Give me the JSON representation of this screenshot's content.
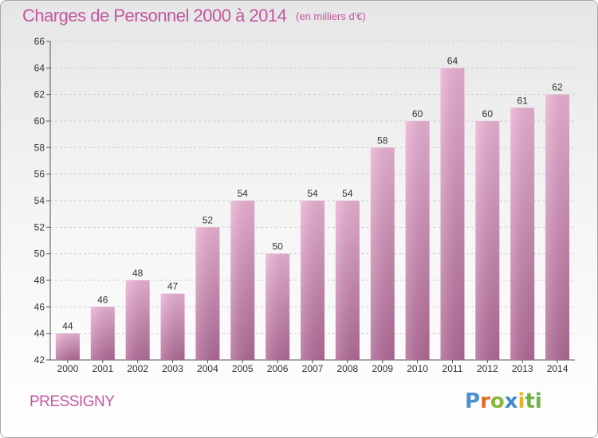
{
  "title": "Charges de Personnel 2000 à 2014",
  "subtitle": "(en milliers d'€)",
  "commune": "PRESSIGNY",
  "logo": {
    "letters": [
      "P",
      "r",
      "o",
      "x",
      "i",
      "ti"
    ]
  },
  "colors": {
    "title": "#c2579f",
    "bar_top": "#eab2d4",
    "bar_bottom": "#b06a96",
    "grid": "#cccccc"
  },
  "chart_data": {
    "type": "bar",
    "categories": [
      "2000",
      "2001",
      "2002",
      "2003",
      "2004",
      "2005",
      "2006",
      "2007",
      "2008",
      "2009",
      "2010",
      "2011",
      "2012",
      "2013",
      "2014"
    ],
    "values": [
      44,
      46,
      48,
      47,
      52,
      54,
      50,
      54,
      54,
      58,
      60,
      64,
      60,
      61,
      62
    ],
    "data_labels": [
      "44",
      "46",
      "48",
      "47",
      "52",
      "54",
      "50",
      "54",
      "54",
      "58",
      "60",
      "64",
      "60",
      "61",
      "62"
    ],
    "ylim": [
      42,
      66
    ],
    "yticks": [
      42,
      44,
      46,
      48,
      50,
      52,
      54,
      56,
      58,
      60,
      62,
      64,
      66
    ],
    "ytick_labels": [
      "42",
      "44",
      "46",
      "48",
      "50",
      "52",
      "54",
      "56",
      "58",
      "60",
      "62",
      "64",
      "66"
    ],
    "grid": true,
    "xlabel": "",
    "ylabel": ""
  }
}
